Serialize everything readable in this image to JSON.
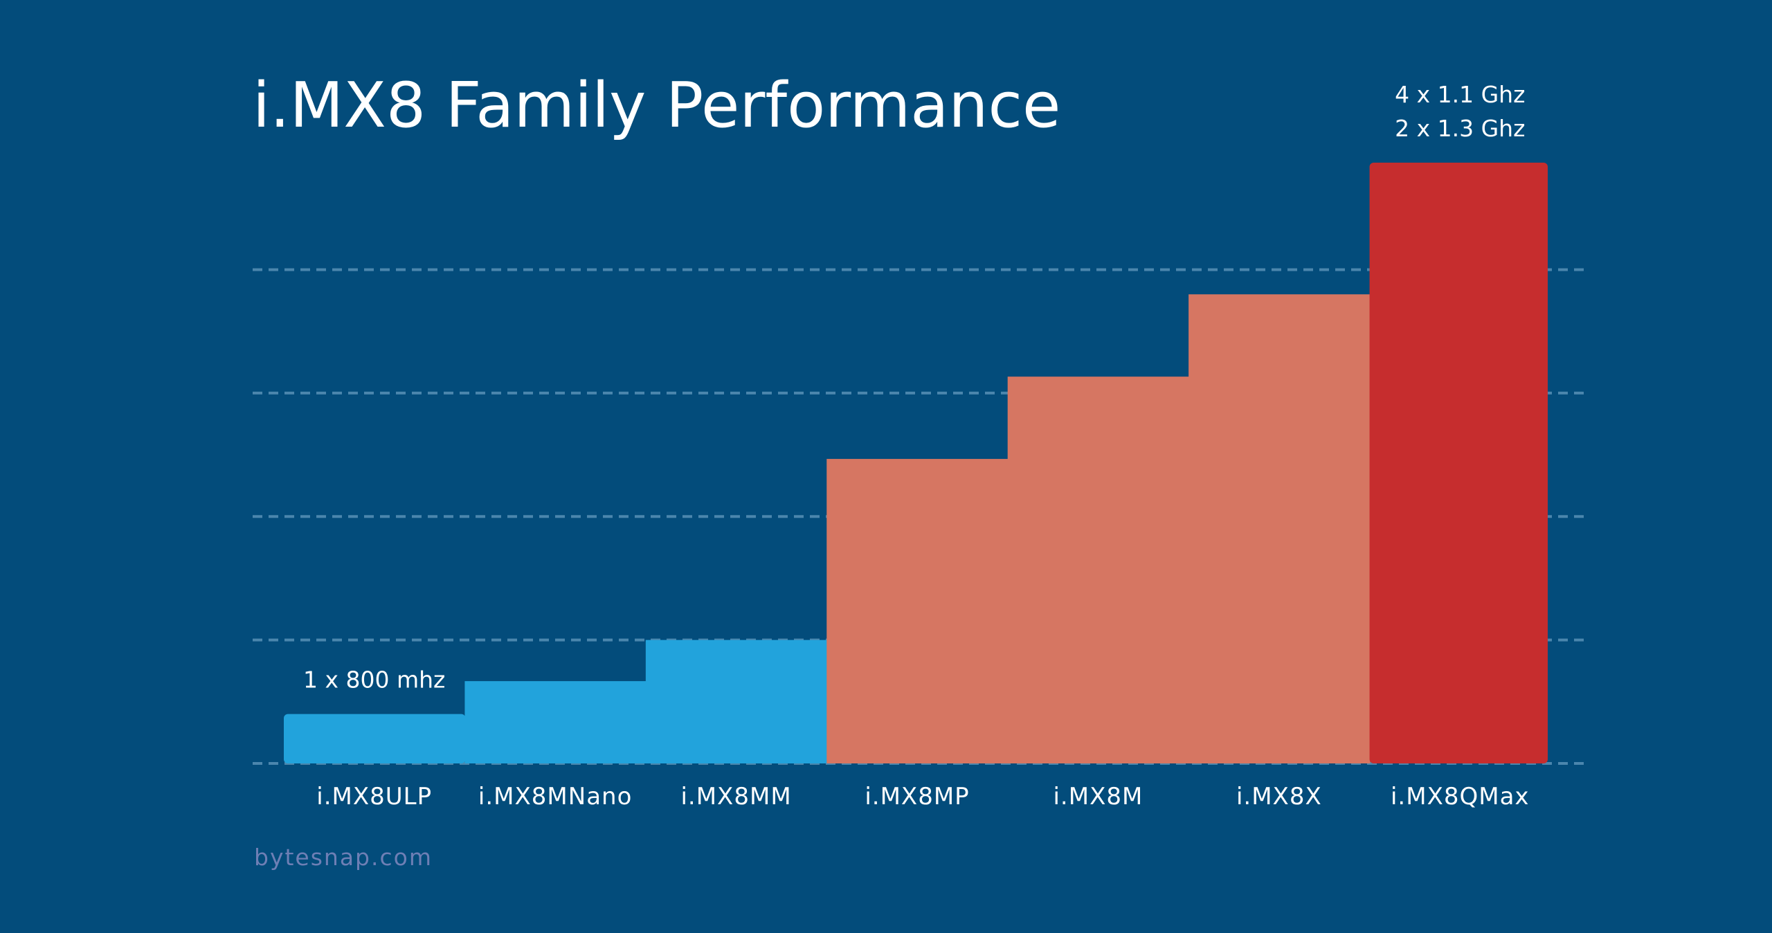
{
  "chart_data": {
    "type": "bar",
    "title": "i.MX8 Family Performance",
    "categories": [
      "i.MX8ULP",
      "i.MX8MNano",
      "i.MX8MM",
      "i.MX8MP",
      "i.MX8M",
      "i.MX8X",
      "i.MX8QMax"
    ],
    "values": [
      0.6,
      1.0,
      1.5,
      3.7,
      4.7,
      5.7,
      7.3
    ],
    "bar_colors": [
      "#22a3dc",
      "#22a3dc",
      "#22a3dc",
      "#d67662",
      "#d67662",
      "#d67662",
      "#c62d2e"
    ],
    "ylim": [
      0,
      7.3
    ],
    "grid_values": [
      0,
      1.5,
      3,
      4.5,
      6
    ],
    "grid": true,
    "annotations": [
      {
        "category": "i.MX8ULP",
        "lines": [
          "1 x 800 mhz"
        ]
      },
      {
        "category": "i.MX8QMax",
        "lines": [
          "4 x 1.1 Ghz",
          "2 x 1.3 Ghz"
        ]
      }
    ]
  },
  "footer": {
    "source": "bytesnap.com"
  },
  "colors": {
    "background": "#034c7b",
    "gridline": "#4b86ad",
    "text": "#ffffff",
    "source_text": "#6e7fb5"
  }
}
